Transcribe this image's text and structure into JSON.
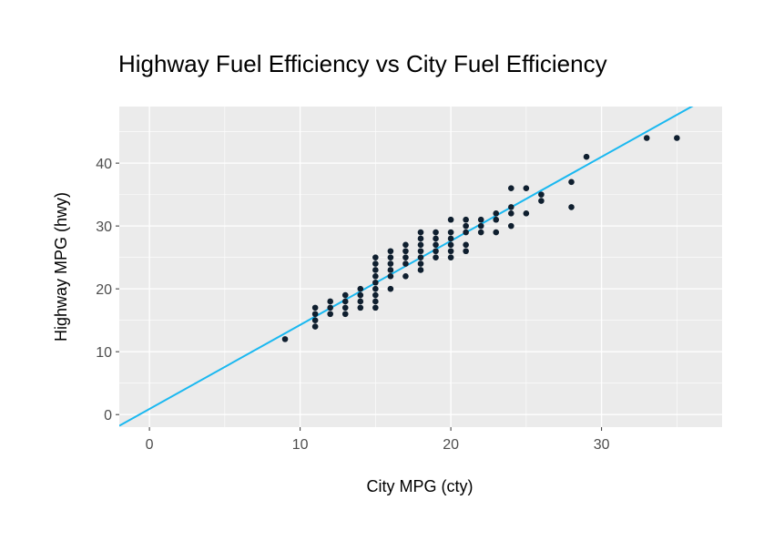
{
  "chart_data": {
    "type": "scatter",
    "title": "Highway Fuel Efficiency vs City Fuel Efficiency",
    "xlabel": "City MPG (cty)",
    "ylabel": "Highway MPG (hwy)",
    "xlim": [
      -2,
      38
    ],
    "ylim": [
      -2,
      49
    ],
    "x_ticks": [
      0,
      10,
      20,
      30
    ],
    "y_ticks": [
      0,
      10,
      20,
      30,
      40
    ],
    "x_tick_labels": [
      "0",
      "10",
      "20",
      "30"
    ],
    "y_tick_labels": [
      "0",
      "10",
      "20",
      "30",
      "40"
    ],
    "grid": true,
    "panel_background": "#ebebeb",
    "point_color": "#0f1f2f",
    "line_color": "#1ab8f0",
    "points": [
      [
        9,
        12
      ],
      [
        11,
        14
      ],
      [
        11,
        15
      ],
      [
        11,
        16
      ],
      [
        11,
        17
      ],
      [
        12,
        16
      ],
      [
        12,
        17
      ],
      [
        12,
        18
      ],
      [
        13,
        16
      ],
      [
        13,
        17
      ],
      [
        13,
        18
      ],
      [
        13,
        19
      ],
      [
        14,
        17
      ],
      [
        14,
        18
      ],
      [
        14,
        19
      ],
      [
        14,
        20
      ],
      [
        15,
        17
      ],
      [
        15,
        18
      ],
      [
        15,
        19
      ],
      [
        15,
        20
      ],
      [
        15,
        21
      ],
      [
        15,
        22
      ],
      [
        15,
        23
      ],
      [
        15,
        24
      ],
      [
        15,
        25
      ],
      [
        16,
        20
      ],
      [
        16,
        22
      ],
      [
        16,
        23
      ],
      [
        16,
        24
      ],
      [
        16,
        25
      ],
      [
        16,
        26
      ],
      [
        17,
        22
      ],
      [
        17,
        24
      ],
      [
        17,
        25
      ],
      [
        17,
        26
      ],
      [
        17,
        27
      ],
      [
        18,
        23
      ],
      [
        18,
        24
      ],
      [
        18,
        25
      ],
      [
        18,
        26
      ],
      [
        18,
        27
      ],
      [
        18,
        28
      ],
      [
        18,
        29
      ],
      [
        19,
        25
      ],
      [
        19,
        26
      ],
      [
        19,
        27
      ],
      [
        19,
        28
      ],
      [
        19,
        29
      ],
      [
        20,
        25
      ],
      [
        20,
        26
      ],
      [
        20,
        27
      ],
      [
        20,
        28
      ],
      [
        20,
        29
      ],
      [
        20,
        31
      ],
      [
        21,
        26
      ],
      [
        21,
        27
      ],
      [
        21,
        29
      ],
      [
        21,
        30
      ],
      [
        21,
        31
      ],
      [
        22,
        29
      ],
      [
        22,
        30
      ],
      [
        22,
        31
      ],
      [
        23,
        29
      ],
      [
        23,
        31
      ],
      [
        23,
        32
      ],
      [
        24,
        30
      ],
      [
        24,
        32
      ],
      [
        24,
        33
      ],
      [
        24,
        36
      ],
      [
        25,
        32
      ],
      [
        25,
        36
      ],
      [
        26,
        34
      ],
      [
        26,
        35
      ],
      [
        28,
        33
      ],
      [
        28,
        37
      ],
      [
        29,
        41
      ],
      [
        33,
        44
      ],
      [
        35,
        44
      ]
    ],
    "fit_line": {
      "intercept": 0.892,
      "slope": 1.337
    }
  }
}
